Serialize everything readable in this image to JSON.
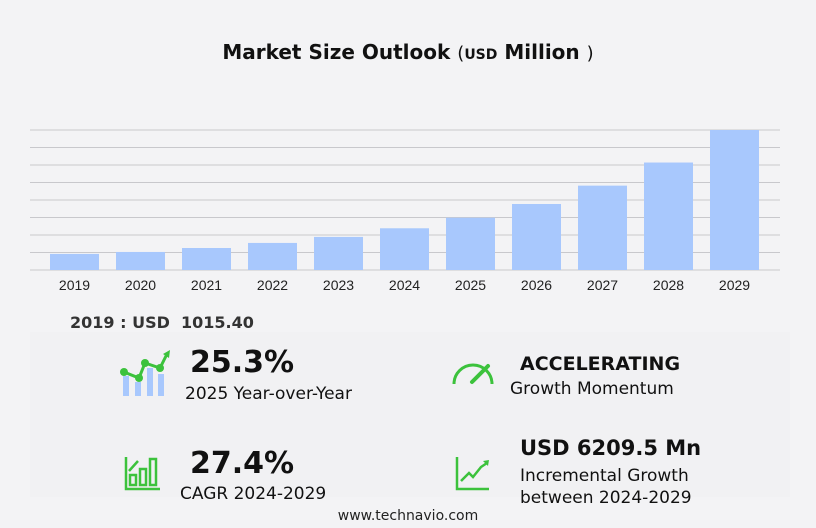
{
  "title": {
    "main": "Market Size Outlook",
    "unit": "USD",
    "unit_suffix": "Million",
    "open": "(",
    "close": ")"
  },
  "chart_data": {
    "type": "bar",
    "categories": [
      "2019",
      "2020",
      "2021",
      "2022",
      "2023",
      "2024",
      "2025",
      "2026",
      "2027",
      "2028",
      "2029"
    ],
    "values": [
      1015.4,
      1140,
      1390,
      1710,
      2090,
      2636,
      3303,
      4170,
      5330,
      6790,
      8845
    ],
    "ylim": [
      0,
      8845
    ],
    "grid": true,
    "bar_color": "#a8c8fd"
  },
  "base_year": {
    "label": "2019 : USD",
    "value": "1015.40"
  },
  "stats": {
    "yoy": {
      "value": "25.3%",
      "label": "2025 Year-over-Year"
    },
    "momentum": {
      "value": "ACCELERATING",
      "label": "Growth Momentum"
    },
    "cagr": {
      "value": "27.4%",
      "label": "CAGR 2024-2029"
    },
    "incremental": {
      "value": "USD 6209.5 Mn",
      "label1": "Incremental Growth",
      "label2": "between 2024-2029"
    }
  },
  "colors": {
    "accent": "#3cc23c",
    "bar": "#a8c8fd"
  },
  "footer": "www.technavio.com"
}
